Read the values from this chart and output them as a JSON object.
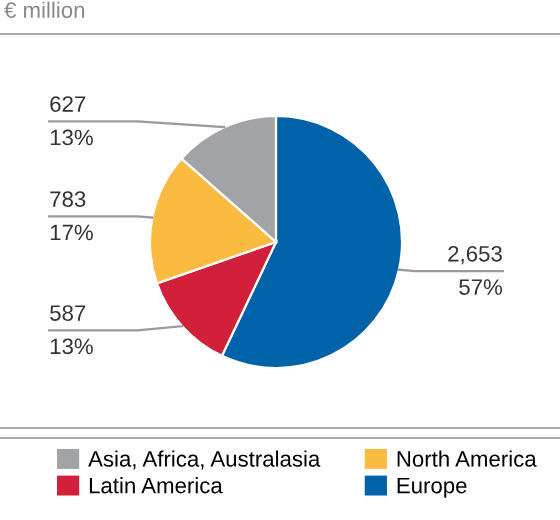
{
  "chart_data": {
    "type": "pie",
    "title": "€ million",
    "categories": [
      "Europe",
      "Latin America",
      "North America",
      "Asia, Africa, Australasia"
    ],
    "values": [
      2653,
      587,
      783,
      627
    ],
    "colors": [
      "#0062a8",
      "#d2203a",
      "#fbbb41",
      "#a2a3a6"
    ],
    "value_labels": [
      "2,653\n57%",
      "587\n13%",
      "783\n17%",
      "627\n13%"
    ],
    "legend": "bottom"
  }
}
